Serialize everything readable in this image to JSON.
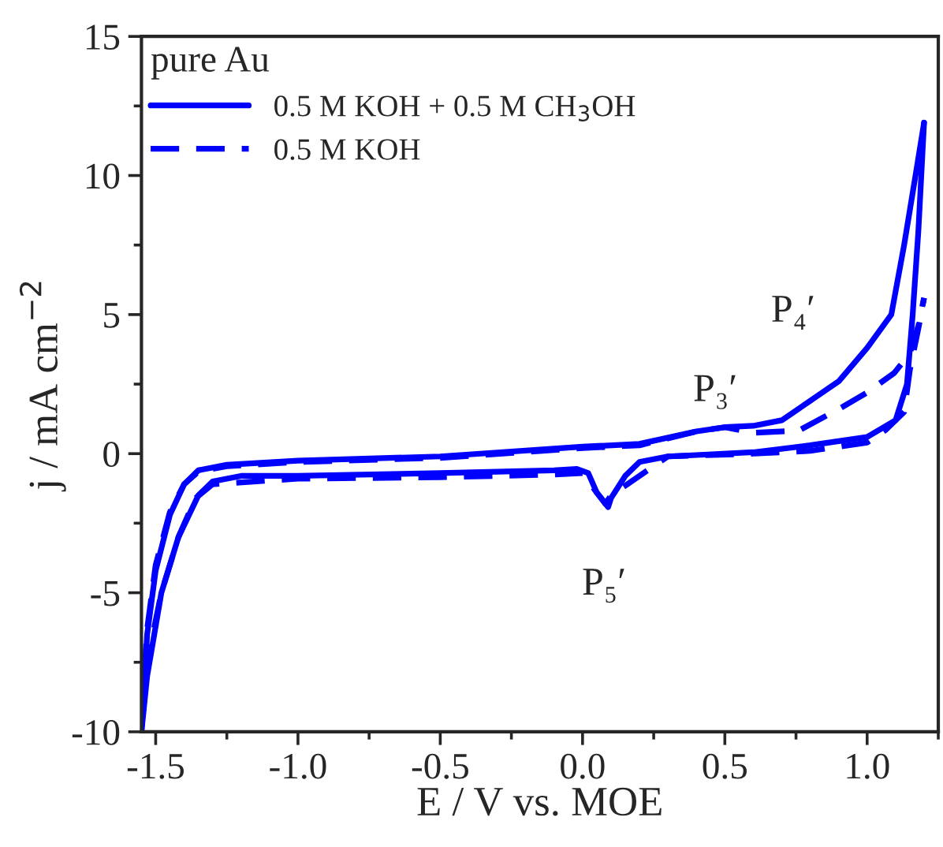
{
  "chart_data": {
    "type": "line",
    "xlabel": "E / V vs. MOE",
    "ylabel": "j / mA cm$^{−2}$",
    "legend_title": "pure Au",
    "legend": "top left",
    "xlim": [
      -1.55,
      1.25
    ],
    "ylim": [
      -10,
      15
    ],
    "xticks": [
      {
        "value": -1.5,
        "label": "-1.5"
      },
      {
        "value": -1.0,
        "label": "-1.0"
      },
      {
        "value": -0.5,
        "label": "-0.5"
      },
      {
        "value": 0.0,
        "label": "0.0"
      },
      {
        "value": 0.5,
        "label": "0.5"
      },
      {
        "value": 1.0,
        "label": "1.0"
      }
    ],
    "yticks": [
      {
        "value": -10,
        "label": "-10"
      },
      {
        "value": -5,
        "label": "-5"
      },
      0,
      5,
      10,
      15
    ],
    "series": [
      {
        "name": "0.5 M KOH + 0.5 M CH$_{3}$OH",
        "color": "#0000ff",
        "line_style": "solid",
        "x": [
          -1.55,
          -1.53,
          -1.5,
          -1.45,
          -1.4,
          -1.35,
          -1.25,
          -1.0,
          -0.5,
          0.0,
          0.2,
          0.4,
          0.5,
          0.6,
          0.7,
          0.8,
          0.9,
          1.0,
          1.085,
          1.13,
          1.17,
          1.2
        ],
        "values": [
          -10,
          -6.5,
          -4.2,
          -2.2,
          -1.1,
          -0.6,
          -0.4,
          -0.25,
          -0.1,
          0.25,
          0.35,
          0.8,
          0.95,
          1.0,
          1.2,
          1.9,
          2.6,
          3.8,
          5.0,
          7.5,
          10,
          11.9
        ]
      },
      {
        "color": "#0000ff",
        "line_style": "solid",
        "x": [
          -1.55,
          -1.53,
          -1.48,
          -1.42,
          -1.35,
          -1.3,
          -1.2,
          -1.0,
          -0.5,
          -0.3,
          -0.1,
          -0.02,
          0.02,
          0.05,
          0.09,
          0.1,
          0.15,
          0.2,
          0.3,
          0.4,
          0.6,
          0.8,
          1.0,
          1.1,
          1.14,
          1.16,
          1.18,
          1.2
        ],
        "values": [
          -10,
          -8,
          -5,
          -3,
          -1.5,
          -1.0,
          -0.8,
          -0.8,
          -0.7,
          -0.65,
          -0.6,
          -0.55,
          -0.7,
          -1.4,
          -1.92,
          -1.6,
          -0.8,
          -0.3,
          -0.1,
          -0.05,
          0.05,
          0.3,
          0.6,
          1.2,
          2.5,
          5,
          8,
          11.9
        ]
      },
      {
        "name": "0.5 M KOH",
        "color": "#0000ff",
        "line_style": "dashed",
        "x": [
          -1.55,
          -1.53,
          -1.5,
          -1.45,
          -1.4,
          -1.35,
          -1.25,
          -1.0,
          -0.5,
          0.0,
          0.2,
          0.4,
          0.5,
          0.6,
          0.76,
          0.9,
          1.0,
          1.095,
          1.15,
          1.18,
          1.2
        ],
        "values": [
          -9.5,
          -6.3,
          -4.0,
          -2.1,
          -1.1,
          -0.65,
          -0.45,
          -0.3,
          -0.15,
          0.2,
          0.3,
          0.8,
          0.95,
          0.75,
          0.83,
          1.6,
          2.2,
          2.9,
          3.6,
          4.6,
          5.6
        ]
      },
      {
        "color": "#0000ff",
        "line_style": "dashed",
        "x": [
          -1.55,
          -1.53,
          -1.48,
          -1.42,
          -1.36,
          -1.3,
          -1.0,
          -0.5,
          -0.1,
          0.0,
          0.05,
          0.08,
          0.1,
          0.3,
          0.6,
          0.8,
          1.0,
          1.065,
          1.13,
          1.15,
          1.18,
          1.2
        ],
        "values": [
          -9.5,
          -7.5,
          -5,
          -3,
          -1.6,
          -1.1,
          -0.9,
          -0.85,
          -0.75,
          -0.7,
          -1.4,
          -1.8,
          -1.5,
          -0.1,
          0.0,
          0.1,
          0.4,
          0.85,
          1.5,
          3.0,
          4.5,
          5.6
        ]
      }
    ],
    "annotations": [
      {
        "text": "P₃′",
        "x": 0.45,
        "y": 0.95
      },
      {
        "text": "P₄′",
        "x": 0.97,
        "y": 3.8
      },
      {
        "text": "P₅′",
        "x": 0.09,
        "y": -1.92
      }
    ]
  }
}
